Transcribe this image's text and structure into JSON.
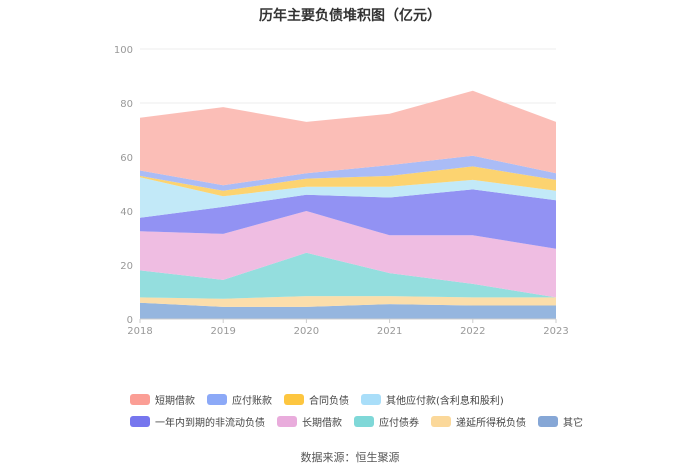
{
  "title": "历年主要负债堆积图（亿元）",
  "source": "数据来源：恒生聚源",
  "chart_data": {
    "type": "area",
    "stacked": true,
    "title": "历年主要负债堆积图（亿元）",
    "x": [
      "2018",
      "2019",
      "2020",
      "2021",
      "2022",
      "2023"
    ],
    "ylim": [
      0,
      100
    ],
    "yticks": [
      0,
      20,
      40,
      60,
      80,
      100
    ],
    "grid": true,
    "legend_position": "bottom",
    "series": [
      {
        "name": "其它",
        "color": "#8fb2dd",
        "values": [
          6.0,
          4.5,
          4.5,
          5.5,
          5.0,
          5.0
        ]
      },
      {
        "name": "递延所得税负债",
        "color": "#fbdca6",
        "values": [
          2.0,
          3.0,
          4.0,
          3.0,
          3.0,
          3.0
        ]
      },
      {
        "name": "应付债券",
        "color": "#8edcdc",
        "values": [
          10.0,
          7.0,
          16.0,
          8.5,
          5.0,
          0.0
        ]
      },
      {
        "name": "长期借款",
        "color": "#eeb9e0",
        "values": [
          14.5,
          17.0,
          15.5,
          14.0,
          18.0,
          18.0
        ]
      },
      {
        "name": "一年内到期的非流动负债",
        "color": "#8c8cf2",
        "values": [
          5.0,
          10.0,
          6.0,
          14.0,
          17.0,
          18.0
        ]
      },
      {
        "name": "其他应付款(含利息和股利)",
        "color": "#bfe8f8",
        "values": [
          15.0,
          4.0,
          3.0,
          4.0,
          3.5,
          3.5
        ]
      },
      {
        "name": "合同负债",
        "color": "#fcd168",
        "values": [
          0.5,
          2.0,
          3.0,
          4.0,
          5.0,
          4.0
        ]
      },
      {
        "name": "应付账款",
        "color": "#a5b8f6",
        "values": [
          2.0,
          2.0,
          2.0,
          4.0,
          4.0,
          2.5
        ]
      },
      {
        "name": "短期借款",
        "color": "#fbbbb3",
        "values": [
          19.5,
          29.0,
          19.0,
          19.0,
          24.0,
          19.0
        ]
      }
    ]
  },
  "legend": {
    "rows": [
      [
        {
          "name": "短期借款",
          "color": "#fb9e95"
        },
        {
          "name": "应付账款",
          "color": "#8ca9f7"
        },
        {
          "name": "合同负债",
          "color": "#fdc640"
        },
        {
          "name": "其他应付款(含利息和股利)",
          "color": "#a9def9"
        }
      ],
      [
        {
          "name": "一年内到期的非流动负债",
          "color": "#7676ee"
        },
        {
          "name": "长期借款",
          "color": "#e9acdc"
        },
        {
          "name": "应付债券",
          "color": "#7fd8d8"
        },
        {
          "name": "递延所得税负债",
          "color": "#fbd89a"
        },
        {
          "name": "其它",
          "color": "#86a7d6"
        }
      ]
    ]
  }
}
